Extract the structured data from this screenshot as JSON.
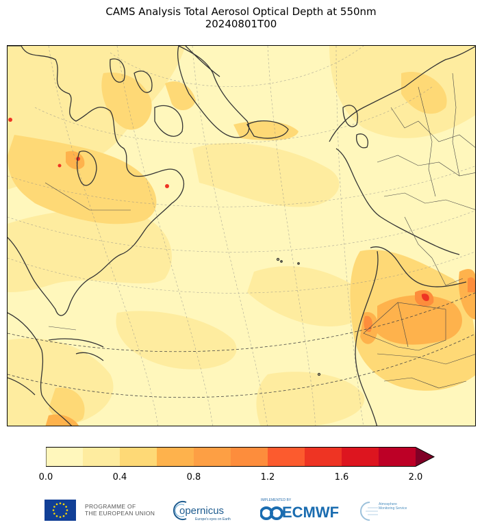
{
  "title": {
    "line1": "CAMS Analysis Total Aerosol Optical Depth at 550nm",
    "line2": "20240801T00"
  },
  "colorbar": {
    "ticks": [
      "0.0",
      "0.4",
      "0.8",
      "1.2",
      "1.6",
      "2.0"
    ],
    "bounds": [
      0.0,
      0.2,
      0.4,
      0.6,
      0.8,
      1.0,
      1.2,
      1.4,
      1.6,
      1.8,
      2.0
    ],
    "colors": [
      "#fff7bc",
      "#feec9f",
      "#fed976",
      "#feb24c",
      "#fd9f44",
      "#fd8d3c",
      "#fc5b2e",
      "#ee3423",
      "#dd151f",
      "#bd0026",
      "#800026"
    ],
    "extend": "max"
  },
  "map": {
    "variable": "total aerosol optical depth at 550nm",
    "region": "North Atlantic, North America, Europe, North-West Africa",
    "projection": "Lambert conformal",
    "land_outline_color": "#333333",
    "gridline_style": "dashed grey",
    "features": [
      "coastlines",
      "country borders",
      "graticule"
    ]
  },
  "logos": {
    "eu_line1": "PROGRAMME OF",
    "eu_line2": "THE EUROPEAN UNION",
    "copernicus": "opernicus",
    "copernicus_sub": "Europe's eyes on Earth",
    "ecmwf_small": "IMPLEMENTED BY",
    "ecmwf": "ECMWF",
    "cams_line1": "Atmosphere",
    "cams_line2": "Monitoring Service"
  }
}
